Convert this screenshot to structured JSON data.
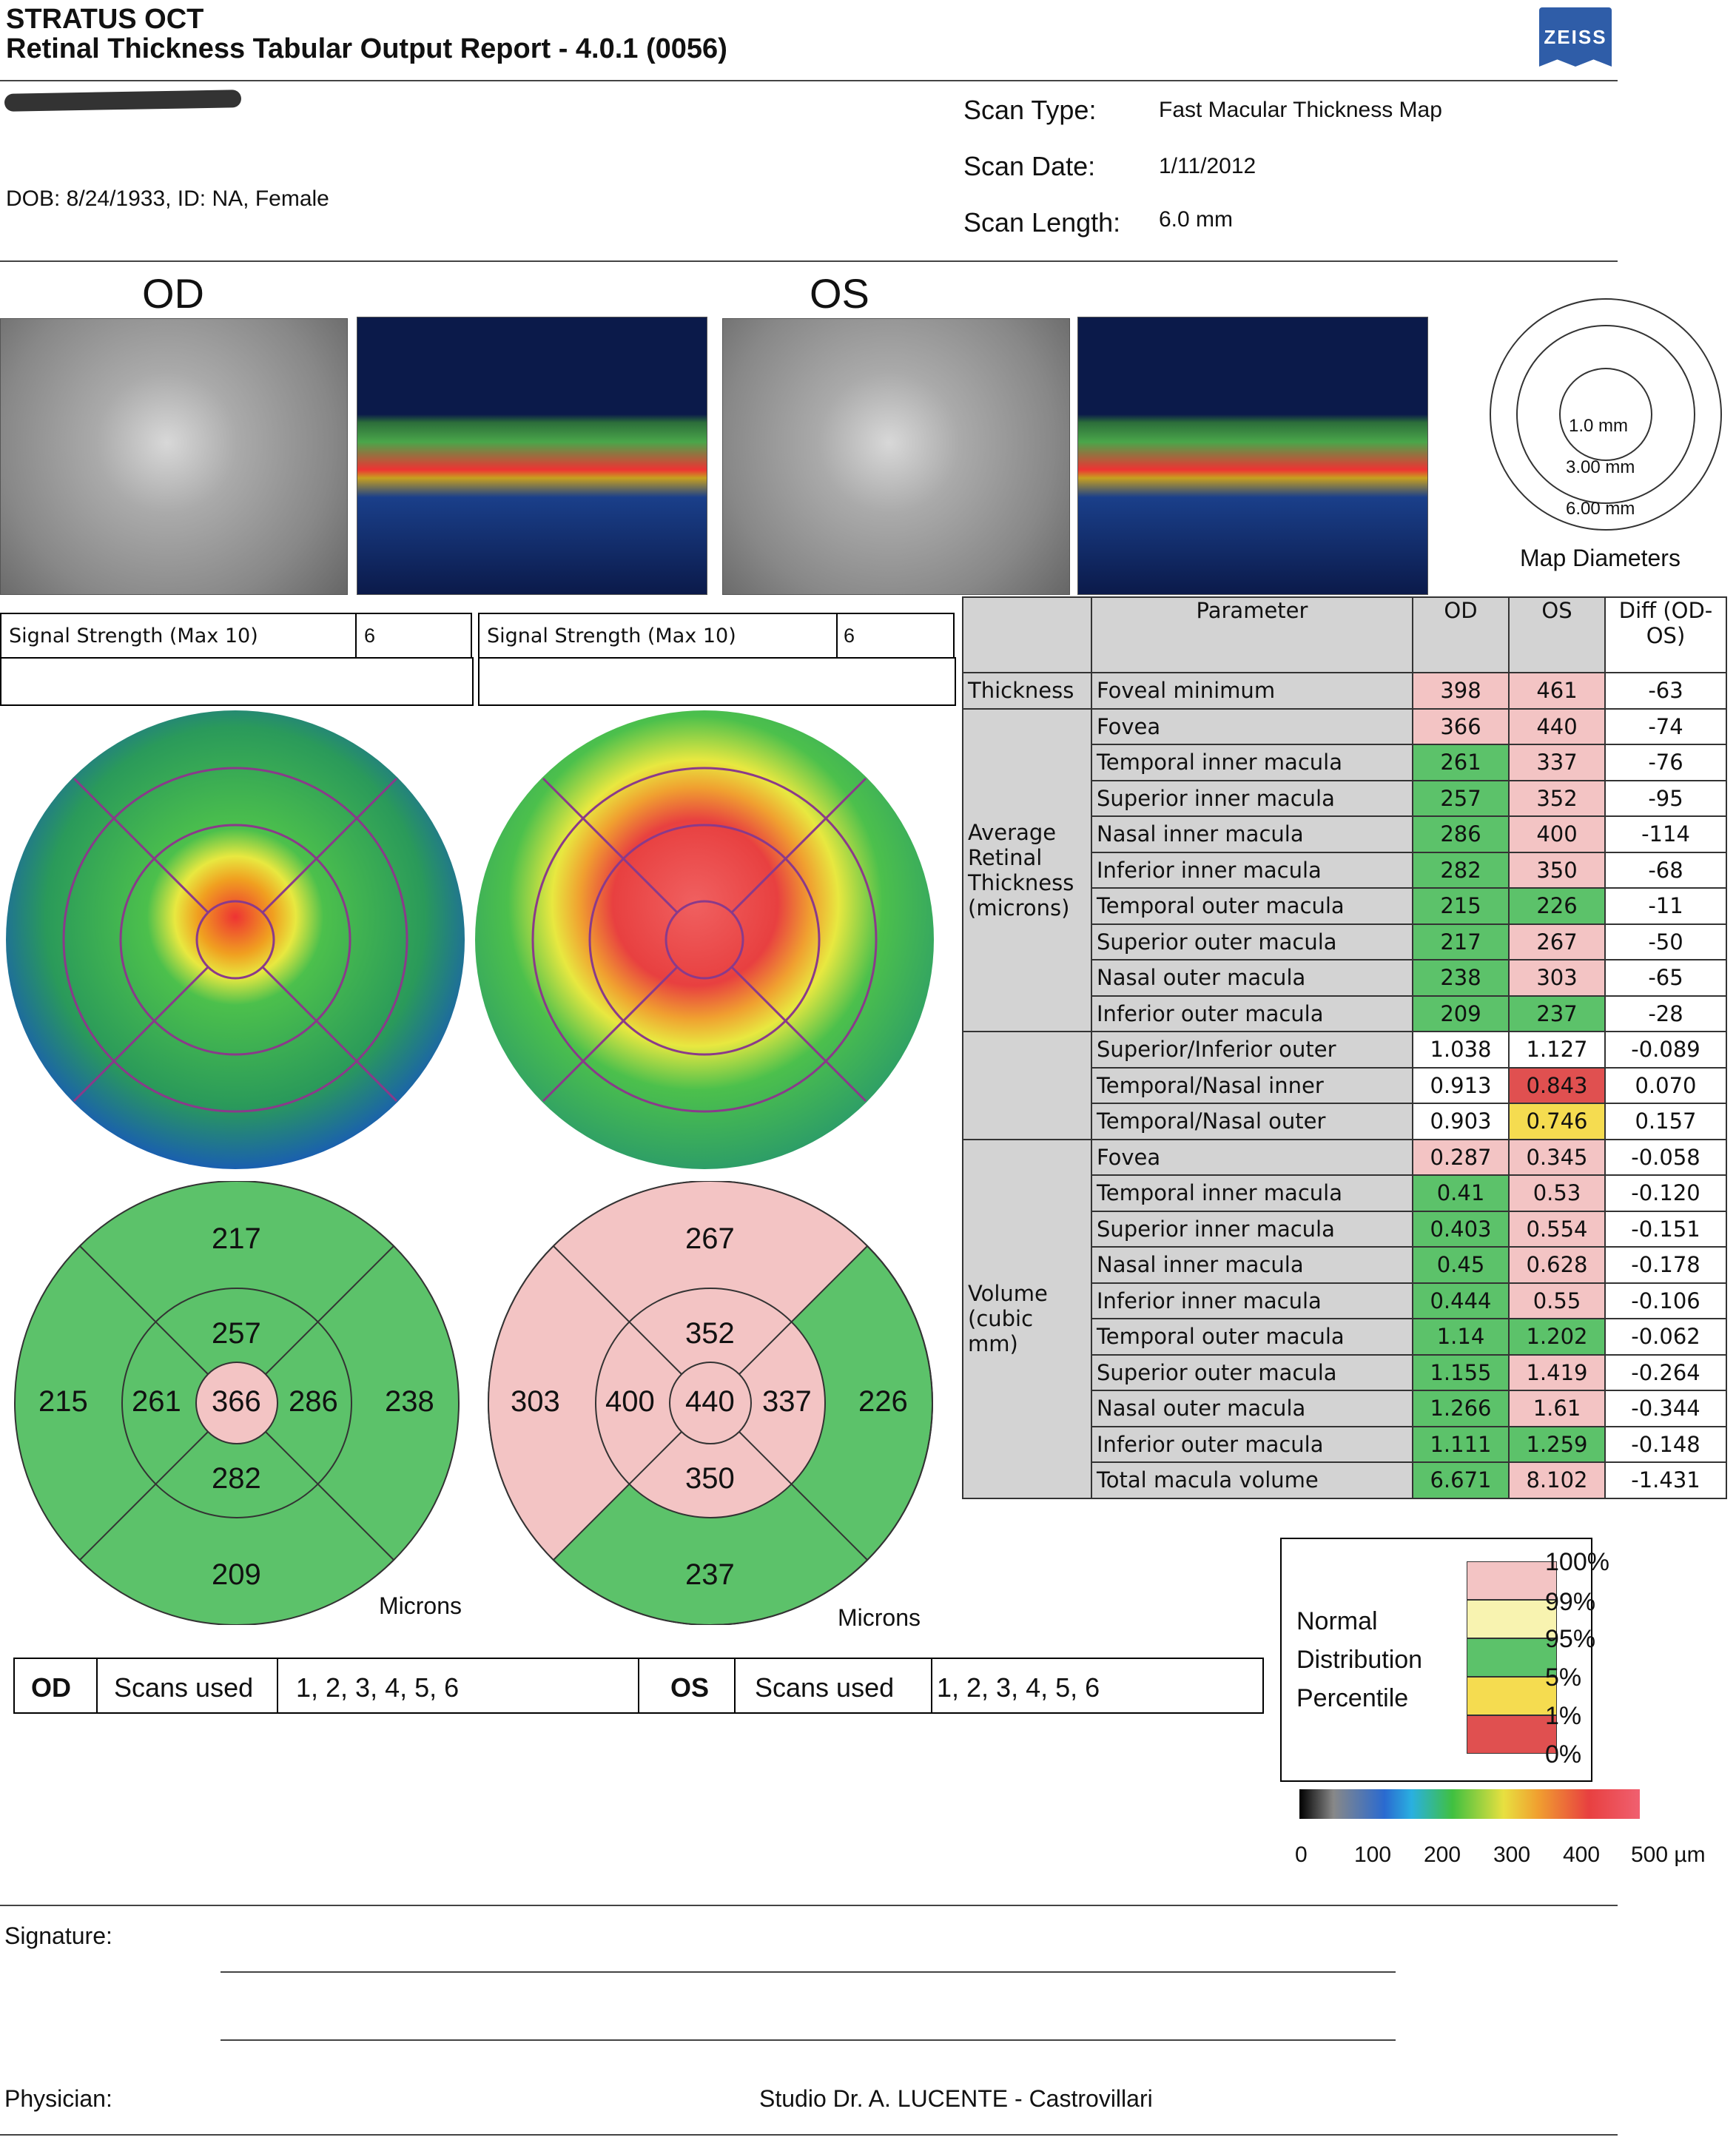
{
  "header": {
    "title": "STRATUS OCT",
    "subtitle": "Retinal Thickness Tabular Output Report - 4.0.1 (0056)",
    "logo": "ZEISS",
    "dob_line": "DOB: 8/24/1933, ID: NA, Female",
    "scan_type_label": "Scan Type:",
    "scan_type": "Fast Macular Thickness Map",
    "scan_date_label": "Scan Date:",
    "scan_date": "1/11/2012",
    "scan_length_label": "Scan Length:",
    "scan_length": "6.0 mm"
  },
  "eyes": {
    "od": "OD",
    "os": "OS"
  },
  "map_diameters": {
    "title": "Map Diameters",
    "d1": "1.0 mm",
    "d2": "3.00 mm",
    "d3": "6.00 mm"
  },
  "signal": {
    "label": "Signal Strength (Max 10)",
    "od_value": "6",
    "os_value": "6"
  },
  "table": {
    "headers": {
      "parameter": "Parameter",
      "od": "OD",
      "os": "OS",
      "diff": "Diff (OD-OS)"
    },
    "groups": {
      "thickness": "Thickness",
      "avg": "Average Retinal Thickness (microns)",
      "volume": "Volume (cubic mm)"
    },
    "rows": [
      {
        "p": "Foveal minimum",
        "od": "398",
        "os": "461",
        "d": "-63",
        "odc": "pink",
        "osc": "pink"
      },
      {
        "p": "Fovea",
        "od": "366",
        "os": "440",
        "d": "-74",
        "odc": "pink",
        "osc": "pink"
      },
      {
        "p": "Temporal inner macula",
        "od": "261",
        "os": "337",
        "d": "-76",
        "odc": "green",
        "osc": "pink"
      },
      {
        "p": "Superior inner macula",
        "od": "257",
        "os": "352",
        "d": "-95",
        "odc": "green",
        "osc": "pink"
      },
      {
        "p": "Nasal inner macula",
        "od": "286",
        "os": "400",
        "d": "-114",
        "odc": "green",
        "osc": "pink"
      },
      {
        "p": "Inferior inner macula",
        "od": "282",
        "os": "350",
        "d": "-68",
        "odc": "green",
        "osc": "pink"
      },
      {
        "p": "Temporal outer macula",
        "od": "215",
        "os": "226",
        "d": "-11",
        "odc": "green",
        "osc": "green"
      },
      {
        "p": "Superior outer macula",
        "od": "217",
        "os": "267",
        "d": "-50",
        "odc": "green",
        "osc": "pink"
      },
      {
        "p": "Nasal outer macula",
        "od": "238",
        "os": "303",
        "d": "-65",
        "odc": "green",
        "osc": "pink"
      },
      {
        "p": "Inferior outer macula",
        "od": "209",
        "os": "237",
        "d": "-28",
        "odc": "green",
        "osc": "green"
      },
      {
        "p": "Superior/Inferior outer",
        "od": "1.038",
        "os": "1.127",
        "d": "-0.089",
        "odc": "wh",
        "osc": "wh"
      },
      {
        "p": "Temporal/Nasal inner",
        "od": "0.913",
        "os": "0.843",
        "d": "0.070",
        "odc": "wh",
        "osc": "red"
      },
      {
        "p": "Temporal/Nasal outer",
        "od": "0.903",
        "os": "0.746",
        "d": "0.157",
        "odc": "wh",
        "osc": "yellow"
      },
      {
        "p": "Fovea",
        "od": "0.287",
        "os": "0.345",
        "d": "-0.058",
        "odc": "pink",
        "osc": "pink"
      },
      {
        "p": "Temporal inner macula",
        "od": "0.41",
        "os": "0.53",
        "d": "-0.120",
        "odc": "green",
        "osc": "pink"
      },
      {
        "p": "Superior inner macula",
        "od": "0.403",
        "os": "0.554",
        "d": "-0.151",
        "odc": "green",
        "osc": "pink"
      },
      {
        "p": "Nasal inner macula",
        "od": "0.45",
        "os": "0.628",
        "d": "-0.178",
        "odc": "green",
        "osc": "pink"
      },
      {
        "p": "Inferior inner macula",
        "od": "0.444",
        "os": "0.55",
        "d": "-0.106",
        "odc": "green",
        "osc": "pink"
      },
      {
        "p": "Temporal outer macula",
        "od": "1.14",
        "os": "1.202",
        "d": "-0.062",
        "odc": "green",
        "osc": "green"
      },
      {
        "p": "Superior outer macula",
        "od": "1.155",
        "os": "1.419",
        "d": "-0.264",
        "odc": "green",
        "osc": "pink"
      },
      {
        "p": "Nasal outer macula",
        "od": "1.266",
        "os": "1.61",
        "d": "-0.344",
        "odc": "green",
        "osc": "pink"
      },
      {
        "p": "Inferior outer macula",
        "od": "1.111",
        "os": "1.259",
        "d": "-0.148",
        "odc": "green",
        "osc": "green"
      },
      {
        "p": "Total macula volume",
        "od": "6.671",
        "os": "8.102",
        "d": "-1.431",
        "odc": "green",
        "osc": "pink"
      }
    ]
  },
  "od_map": {
    "center": "366",
    "sup_in": "257",
    "inf_in": "282",
    "temp_in": "261",
    "nas_in": "286",
    "sup_out": "217",
    "inf_out": "209",
    "temp_out": "215",
    "nas_out": "238",
    "unit": "Microns"
  },
  "os_map": {
    "center": "440",
    "sup_in": "352",
    "inf_in": "350",
    "temp_in": "400",
    "nas_in": "337",
    "sup_out": "267",
    "inf_out": "237",
    "temp_out": "303",
    "nas_out": "226",
    "unit": "Microns"
  },
  "scans": {
    "od_label": "OD",
    "os_label": "OS",
    "used_label": "Scans used",
    "od_used": "1, 2, 3, 4, 5, 6",
    "os_used": "1, 2, 3, 4, 5, 6"
  },
  "legend": {
    "title1": "Normal",
    "title2": "Distribution",
    "title3": "Percentile",
    "p100": "100%",
    "p99": "99%",
    "p95": "95%",
    "p5": "5%",
    "p1": "1%",
    "p0": "0%"
  },
  "scale": {
    "t0": "0",
    "t1": "100",
    "t2": "200",
    "t3": "300",
    "t4": "400",
    "t5": "500 µm"
  },
  "footer": {
    "signature_label": "Signature:",
    "physician_label": "Physician:",
    "physician": "Studio Dr. A. LUCENTE - Castrovillari"
  },
  "colors": {
    "normal": "#5cc26a",
    "pink": "#f3c4c4",
    "yellow": "#f5dc50",
    "red": "#e05050"
  }
}
